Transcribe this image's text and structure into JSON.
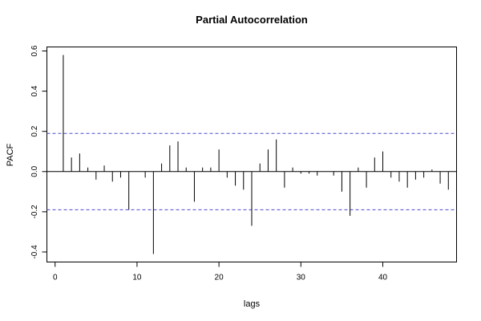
{
  "chart_data": {
    "type": "bar",
    "title": "Partial Autocorrelation",
    "xlabel": "lags",
    "ylabel": "PACF",
    "xlim": [
      -1,
      49
    ],
    "ylim": [
      -0.45,
      0.62
    ],
    "x_ticks": [
      0,
      10,
      20,
      30,
      40
    ],
    "y_ticks": [
      -0.4,
      -0.2,
      0.0,
      0.2,
      0.4,
      0.6
    ],
    "x_tick_labels": [
      "0",
      "10",
      "20",
      "30",
      "40"
    ],
    "y_tick_labels": [
      "-0.4",
      "-0.2",
      "0.0",
      "0.2",
      "0.4",
      "0.6"
    ],
    "zero_line": 0,
    "confidence_bounds": [
      0.19,
      -0.19
    ],
    "confidence_color": "#4a4acd",
    "bar_color": "#000000",
    "series": [
      {
        "lags": [
          1,
          2,
          3,
          4,
          5,
          6,
          7,
          8,
          9,
          10,
          11,
          12,
          13,
          14,
          15,
          16,
          17,
          18,
          19,
          20,
          21,
          22,
          23,
          24,
          25,
          26,
          27,
          28,
          29,
          30,
          31,
          32,
          33,
          34,
          35,
          36,
          37,
          38,
          39,
          40,
          41,
          42,
          43,
          44,
          45,
          46,
          47,
          48
        ],
        "values": [
          0.58,
          0.07,
          0.09,
          0.02,
          -0.04,
          0.03,
          -0.05,
          -0.03,
          -0.19,
          0.0,
          -0.03,
          -0.41,
          0.04,
          0.13,
          0.15,
          0.02,
          -0.15,
          0.02,
          0.02,
          0.11,
          -0.03,
          -0.07,
          -0.09,
          -0.27,
          0.04,
          0.11,
          0.16,
          -0.08,
          0.02,
          -0.01,
          -0.01,
          -0.02,
          0.0,
          -0.02,
          -0.1,
          -0.22,
          0.02,
          -0.08,
          0.07,
          0.1,
          -0.03,
          -0.05,
          -0.08,
          -0.04,
          -0.03,
          0.01,
          -0.06,
          -0.09
        ]
      }
    ]
  }
}
